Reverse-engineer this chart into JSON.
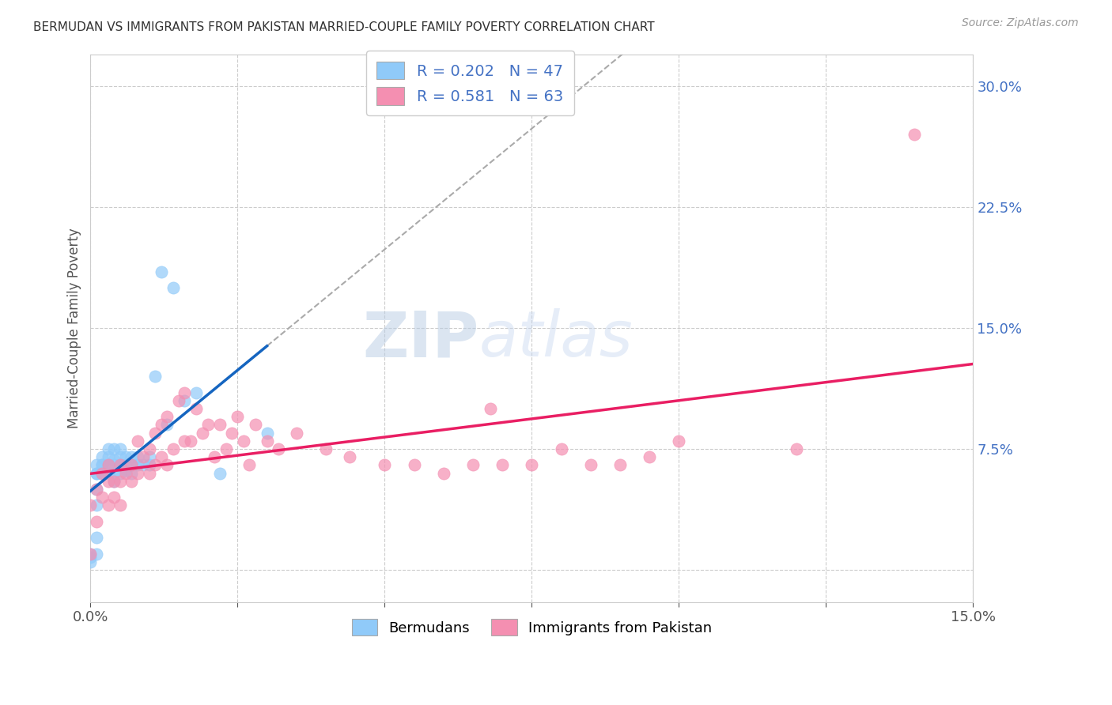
{
  "title": "BERMUDAN VS IMMIGRANTS FROM PAKISTAN MARRIED-COUPLE FAMILY POVERTY CORRELATION CHART",
  "source": "Source: ZipAtlas.com",
  "ylabel": "Married-Couple Family Poverty",
  "xlim": [
    0.0,
    0.15
  ],
  "ylim": [
    -0.02,
    0.32
  ],
  "xtick_positions": [
    0.0,
    0.025,
    0.05,
    0.075,
    0.1,
    0.125,
    0.15
  ],
  "xtick_labels": [
    "0.0%",
    "",
    "",
    "",
    "",
    "",
    "15.0%"
  ],
  "ytick_vals_right": [
    0.0,
    0.075,
    0.15,
    0.225,
    0.3
  ],
  "ytick_labels_right": [
    "",
    "7.5%",
    "15.0%",
    "22.5%",
    "30.0%"
  ],
  "blue_R": "0.202",
  "blue_N": "47",
  "pink_R": "0.581",
  "pink_N": "63",
  "blue_scatter_color": "#90CAF9",
  "pink_scatter_color": "#F48FB1",
  "blue_line_color": "#1565C0",
  "pink_line_color": "#E91E63",
  "blue_dash_color": "#90CAF9",
  "blue_scatter_x": [
    0.0,
    0.0,
    0.0,
    0.001,
    0.001,
    0.001,
    0.001,
    0.001,
    0.001,
    0.001,
    0.002,
    0.002,
    0.002,
    0.002,
    0.002,
    0.003,
    0.003,
    0.003,
    0.003,
    0.004,
    0.004,
    0.004,
    0.004,
    0.004,
    0.005,
    0.005,
    0.005,
    0.005,
    0.006,
    0.006,
    0.006,
    0.007,
    0.007,
    0.007,
    0.008,
    0.008,
    0.009,
    0.01,
    0.01,
    0.011,
    0.012,
    0.013,
    0.014,
    0.016,
    0.018,
    0.022,
    0.03
  ],
  "blue_scatter_y": [
    0.005,
    0.008,
    0.01,
    0.01,
    0.02,
    0.04,
    0.05,
    0.06,
    0.06,
    0.065,
    0.06,
    0.06,
    0.065,
    0.065,
    0.07,
    0.06,
    0.065,
    0.07,
    0.075,
    0.055,
    0.06,
    0.065,
    0.068,
    0.075,
    0.06,
    0.065,
    0.07,
    0.075,
    0.062,
    0.065,
    0.07,
    0.06,
    0.065,
    0.07,
    0.065,
    0.07,
    0.065,
    0.065,
    0.07,
    0.12,
    0.185,
    0.09,
    0.175,
    0.105,
    0.11,
    0.06,
    0.085
  ],
  "pink_scatter_x": [
    0.0,
    0.0,
    0.001,
    0.001,
    0.002,
    0.002,
    0.003,
    0.003,
    0.003,
    0.004,
    0.004,
    0.005,
    0.005,
    0.005,
    0.006,
    0.007,
    0.007,
    0.008,
    0.008,
    0.009,
    0.01,
    0.01,
    0.011,
    0.011,
    0.012,
    0.012,
    0.013,
    0.013,
    0.014,
    0.015,
    0.016,
    0.016,
    0.017,
    0.018,
    0.019,
    0.02,
    0.021,
    0.022,
    0.023,
    0.024,
    0.025,
    0.026,
    0.027,
    0.028,
    0.03,
    0.032,
    0.035,
    0.04,
    0.044,
    0.05,
    0.055,
    0.06,
    0.065,
    0.068,
    0.07,
    0.075,
    0.08,
    0.085,
    0.09,
    0.095,
    0.1,
    0.12,
    0.14
  ],
  "pink_scatter_y": [
    0.01,
    0.04,
    0.03,
    0.05,
    0.045,
    0.06,
    0.04,
    0.055,
    0.065,
    0.045,
    0.055,
    0.04,
    0.055,
    0.065,
    0.06,
    0.055,
    0.065,
    0.06,
    0.08,
    0.07,
    0.06,
    0.075,
    0.065,
    0.085,
    0.07,
    0.09,
    0.065,
    0.095,
    0.075,
    0.105,
    0.08,
    0.11,
    0.08,
    0.1,
    0.085,
    0.09,
    0.07,
    0.09,
    0.075,
    0.085,
    0.095,
    0.08,
    0.065,
    0.09,
    0.08,
    0.075,
    0.085,
    0.075,
    0.07,
    0.065,
    0.065,
    0.06,
    0.065,
    0.1,
    0.065,
    0.065,
    0.075,
    0.065,
    0.065,
    0.07,
    0.08,
    0.075,
    0.27
  ],
  "watermark_zip": "ZIP",
  "watermark_atlas": "atlas",
  "background_color": "#ffffff",
  "grid_color": "#cccccc",
  "legend_text_color": "#4472c4",
  "source_color": "#999999"
}
